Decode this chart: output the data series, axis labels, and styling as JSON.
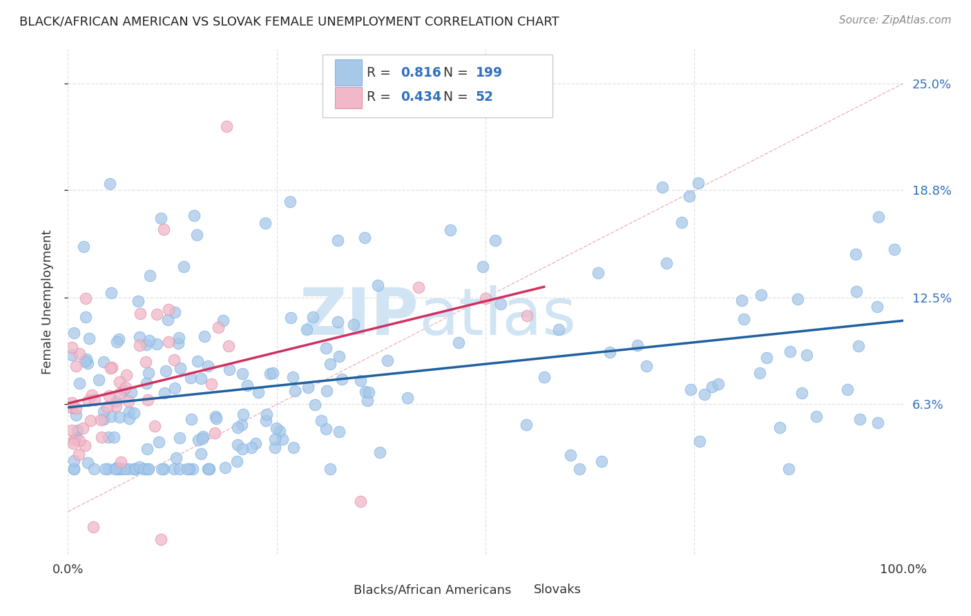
{
  "title": "BLACK/AFRICAN AMERICAN VS SLOVAK FEMALE UNEMPLOYMENT CORRELATION CHART",
  "source": "Source: ZipAtlas.com",
  "ylabel": "Female Unemployment",
  "xlim": [
    0,
    1.0
  ],
  "ylim": [
    -0.025,
    0.27
  ],
  "ytick_positions": [
    0.063,
    0.125,
    0.188,
    0.25
  ],
  "ytick_labels": [
    "6.3%",
    "12.5%",
    "18.8%",
    "25.0%"
  ],
  "blue_R": 0.816,
  "blue_N": 199,
  "pink_R": 0.434,
  "pink_N": 52,
  "blue_marker_color": "#A8C8E8",
  "blue_marker_edge": "#7EB5E8",
  "pink_marker_color": "#F0B8C8",
  "pink_marker_edge": "#E890A8",
  "blue_line_color": "#2060A0",
  "pink_line_color": "#D03060",
  "diagonal_color": "#E8A0B0",
  "watermark_color": "#D0E4F4",
  "legend_value_color": "#3070C0",
  "background_color": "#FFFFFF",
  "grid_color": "#E0E0E0",
  "grid_style": "--"
}
